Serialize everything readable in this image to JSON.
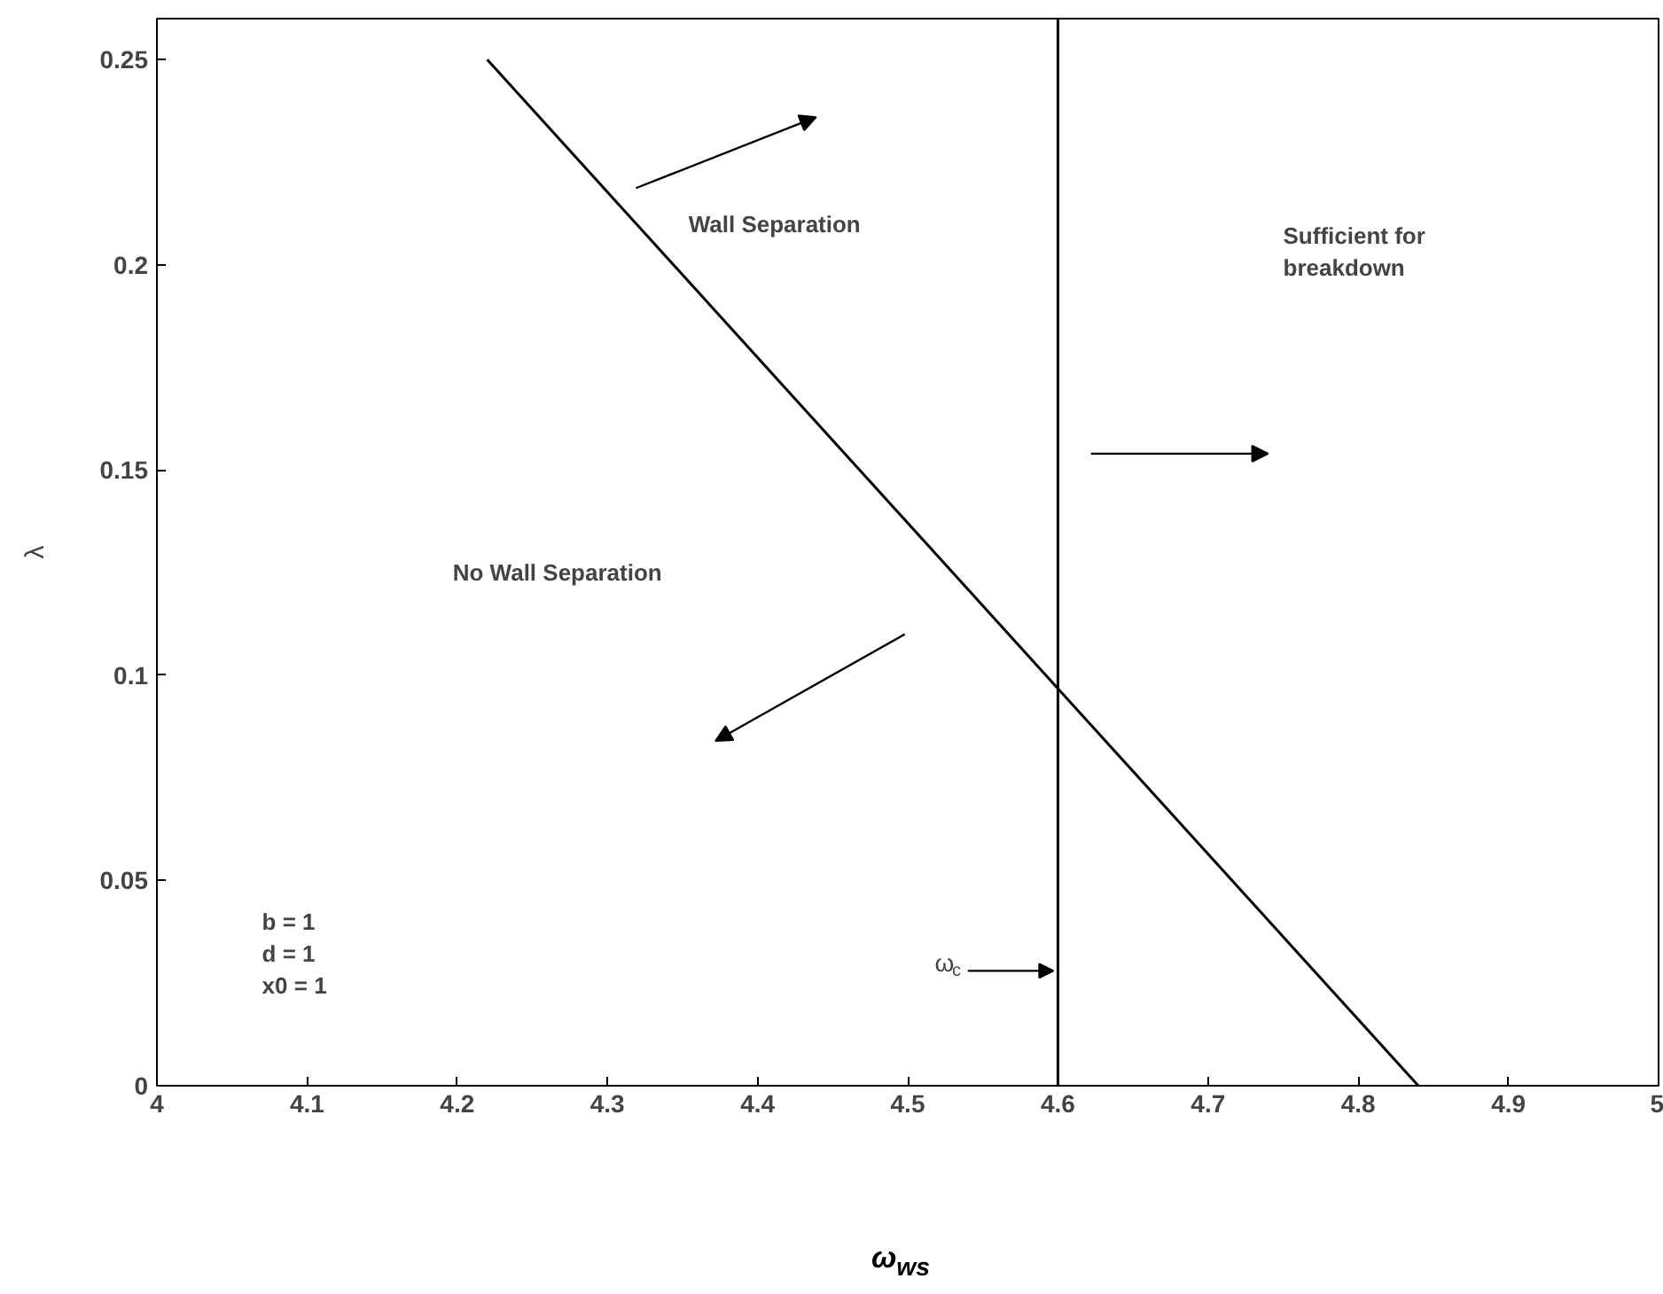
{
  "chart_data": {
    "type": "line",
    "xlabel": "ω$_{ws}$",
    "ylabel": "λ",
    "x": [
      4.22,
      4.84
    ],
    "series": [
      {
        "color": "#000000",
        "values": [
          0.25,
          0
        ]
      }
    ],
    "xlim": [
      4,
      5
    ],
    "ylim": [
      0,
      0.26
    ],
    "xticks": [
      4,
      4.1,
      4.2,
      4.3,
      4.4,
      4.5,
      4.6,
      4.7,
      4.8,
      4.9,
      5
    ],
    "yticks": [
      0,
      0.05,
      0.1,
      0.15,
      0.2,
      0.25
    ],
    "grid": false,
    "marker": "none",
    "line_style": "solid",
    "ref_lines": [
      {
        "axis": "x",
        "value": 4.6,
        "label": "ω$_{c}$",
        "color": "#000000"
      }
    ],
    "annotations": [
      "Wall Separation",
      "No Wall Separation",
      "Sufficient for\nbreakdown",
      "b = 1\nd = 1\nx0 = 1"
    ]
  }
}
